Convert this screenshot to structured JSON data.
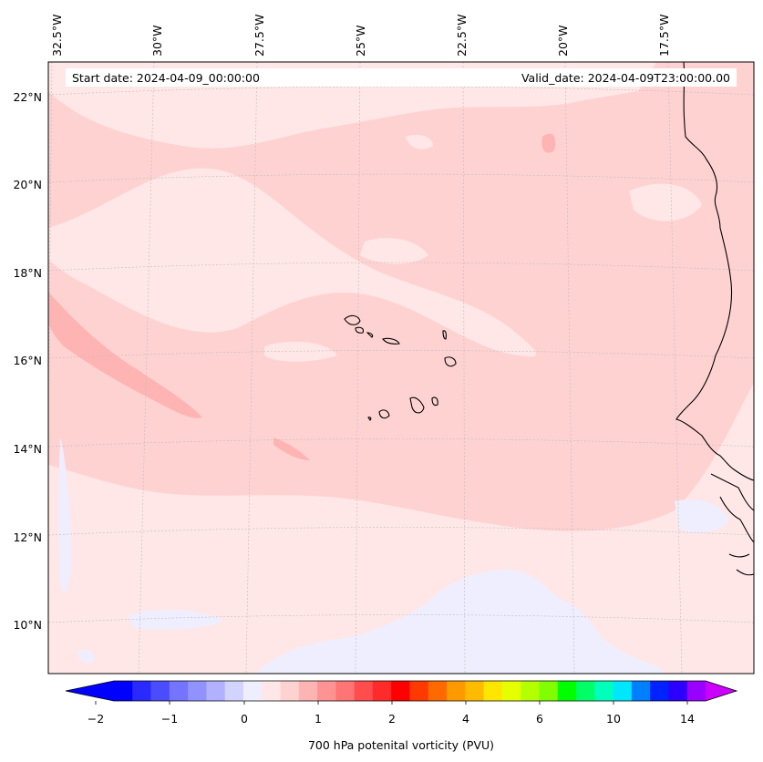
{
  "map": {
    "start_label": "Start date: 2024-04-09_00:00:00",
    "valid_label": "Valid_date: 2024-04-09T23:00:00.00",
    "lon_labels": [
      "32.5°W",
      "30°W",
      "27.5°W",
      "25°W",
      "22.5°W",
      "20°W",
      "17.5°W"
    ],
    "lat_labels": [
      "22°N",
      "20°N",
      "18°N",
      "16°N",
      "14°N",
      "12°N",
      "10°N"
    ],
    "colors": {
      "background": "#ffe7e7",
      "band_medium": "#ffd2d2",
      "band_strong": "#ffb4b4",
      "band_negative": "#eeeeff",
      "coast": "#000000",
      "grid": "#bbbbbb"
    }
  },
  "colorbar": {
    "title": "700 hPa potenital vorticity (PVU)",
    "tick_labels": [
      "−2",
      "−1",
      "0",
      "1",
      "2",
      "4",
      "6",
      "10",
      "14"
    ],
    "colors": [
      "#0000ff",
      "#2a2aff",
      "#4c4cff",
      "#7474ff",
      "#9292ff",
      "#b1b1ff",
      "#d3d3ff",
      "#eeeeff",
      "#ffe7e7",
      "#ffd2d2",
      "#ffb4b4",
      "#ff9292",
      "#ff7474",
      "#ff4c4c",
      "#ff2a2a",
      "#ff0000",
      "#ff3a00",
      "#ff6a00",
      "#ff9900",
      "#ffbb00",
      "#ffe600",
      "#e6ff00",
      "#b4ff00",
      "#7fff00",
      "#00ff00",
      "#00ff66",
      "#00ffbb",
      "#00e6ff",
      "#0080ff",
      "#0022ff",
      "#2b00ff",
      "#9900ff"
    ],
    "extend_low_color": "#0000ff",
    "extend_high_color": "#cc00ff"
  }
}
